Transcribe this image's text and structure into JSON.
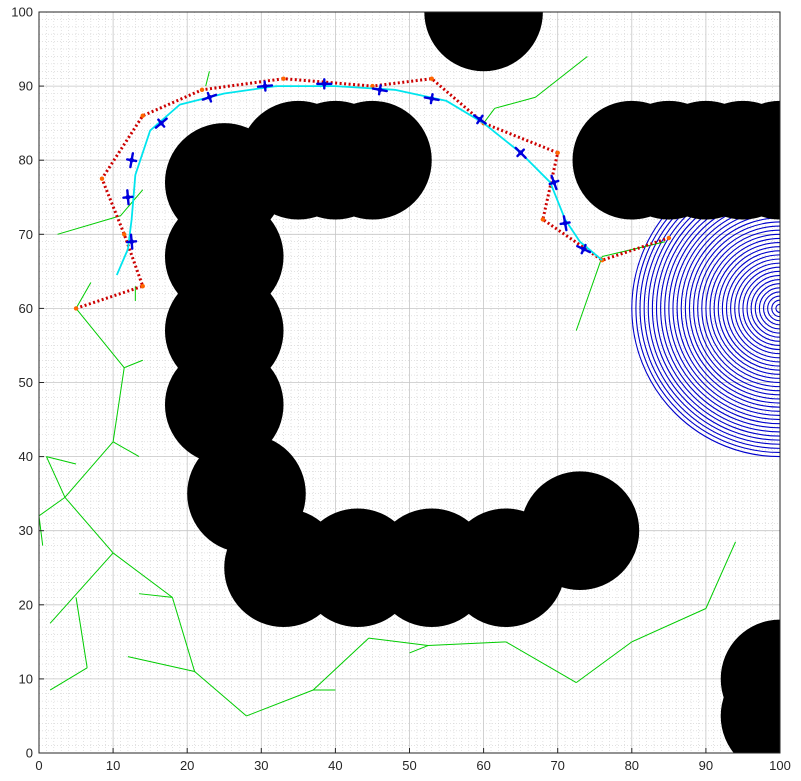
{
  "chart_data": {
    "type": "scatter",
    "title": "",
    "xlabel": "",
    "ylabel": "",
    "xlim": [
      0,
      100
    ],
    "ylim": [
      0,
      100
    ],
    "grid": true,
    "minor_grid": true,
    "x_ticks": [
      0,
      10,
      20,
      30,
      40,
      50,
      60,
      70,
      80,
      90,
      100
    ],
    "y_ticks": [
      0,
      10,
      20,
      30,
      40,
      50,
      60,
      70,
      80,
      90,
      100
    ],
    "x_tick_labels": [
      "0",
      "10",
      "20",
      "30",
      "40",
      "50",
      "60",
      "70",
      "80",
      "90",
      "100"
    ],
    "y_tick_labels": [
      "0",
      "10",
      "20",
      "30",
      "40",
      "50",
      "60",
      "70",
      "80",
      "90",
      "100"
    ],
    "colors": {
      "obstacle": "#000000",
      "tree": "#00cc00",
      "waypoint_path": "#cc0000",
      "waypoint_marker": "#ff6600",
      "smooth_path": "#00e5ee",
      "robot_pose": "#0000dd",
      "sensor_fan": "#0000cc",
      "grid": "#d0d0d0",
      "axis": "#262626"
    },
    "obstacles": [
      {
        "cx": 60,
        "cy": 100,
        "r": 8
      },
      {
        "cx": 25,
        "cy": 77,
        "r": 8
      },
      {
        "cx": 35,
        "cy": 80,
        "r": 8
      },
      {
        "cx": 40,
        "cy": 80,
        "r": 8
      },
      {
        "cx": 45,
        "cy": 80,
        "r": 8
      },
      {
        "cx": 25,
        "cy": 67,
        "r": 8
      },
      {
        "cx": 25,
        "cy": 57,
        "r": 8
      },
      {
        "cx": 25,
        "cy": 47,
        "r": 8
      },
      {
        "cx": 28,
        "cy": 35,
        "r": 8
      },
      {
        "cx": 33,
        "cy": 25,
        "r": 8
      },
      {
        "cx": 43,
        "cy": 25,
        "r": 8
      },
      {
        "cx": 53,
        "cy": 25,
        "r": 8
      },
      {
        "cx": 63,
        "cy": 25,
        "r": 8
      },
      {
        "cx": 73,
        "cy": 30,
        "r": 8
      },
      {
        "cx": 80,
        "cy": 80,
        "r": 8
      },
      {
        "cx": 85,
        "cy": 80,
        "r": 8
      },
      {
        "cx": 90,
        "cy": 80,
        "r": 8
      },
      {
        "cx": 95,
        "cy": 80,
        "r": 8
      },
      {
        "cx": 100,
        "cy": 80,
        "r": 8
      },
      {
        "cx": 100,
        "cy": 10,
        "r": 8
      },
      {
        "cx": 100,
        "cy": 5,
        "r": 8
      }
    ],
    "sensor_fan": {
      "cx": 100,
      "cy": 60,
      "r": 20,
      "rings": 36
    },
    "tree_edges": [
      [
        [
          5,
          60
        ],
        [
          7,
          63.5
        ]
      ],
      [
        [
          5,
          60
        ],
        [
          11.5,
          52
        ]
      ],
      [
        [
          11.5,
          52
        ],
        [
          14,
          53
        ]
      ],
      [
        [
          11.5,
          52
        ],
        [
          10,
          42
        ]
      ],
      [
        [
          10,
          42
        ],
        [
          13.5,
          40
        ]
      ],
      [
        [
          10,
          42
        ],
        [
          3.5,
          34.5
        ]
      ],
      [
        [
          3.5,
          34.5
        ],
        [
          1,
          40
        ]
      ],
      [
        [
          1,
          40
        ],
        [
          5,
          39
        ]
      ],
      [
        [
          3.5,
          34.5
        ],
        [
          0,
          32
        ]
      ],
      [
        [
          0,
          32
        ],
        [
          0.5,
          28
        ]
      ],
      [
        [
          3.5,
          34.5
        ],
        [
          10,
          27
        ]
      ],
      [
        [
          10,
          27
        ],
        [
          1.5,
          17.5
        ]
      ],
      [
        [
          10,
          27
        ],
        [
          18,
          21
        ]
      ],
      [
        [
          18,
          21
        ],
        [
          13.5,
          21.5
        ]
      ],
      [
        [
          18,
          21
        ],
        [
          21,
          11
        ]
      ],
      [
        [
          21,
          11
        ],
        [
          12,
          13
        ]
      ],
      [
        [
          21,
          11
        ],
        [
          28,
          5
        ]
      ],
      [
        [
          28,
          5
        ],
        [
          37,
          8.5
        ]
      ],
      [
        [
          37,
          8.5
        ],
        [
          40,
          8.5
        ]
      ],
      [
        [
          37,
          8.5
        ],
        [
          44.5,
          15.5
        ]
      ],
      [
        [
          44.5,
          15.5
        ],
        [
          52.5,
          14.5
        ]
      ],
      [
        [
          52.5,
          14.5
        ],
        [
          50,
          13.5
        ]
      ],
      [
        [
          52.5,
          14.5
        ],
        [
          63,
          15
        ]
      ],
      [
        [
          63,
          15
        ],
        [
          72.5,
          9.5
        ]
      ],
      [
        [
          72.5,
          9.5
        ],
        [
          80,
          15
        ]
      ],
      [
        [
          80,
          15
        ],
        [
          90,
          19.5
        ]
      ],
      [
        [
          90,
          19.5
        ],
        [
          94,
          28.5
        ]
      ],
      [
        [
          5,
          21
        ],
        [
          6.5,
          11.5
        ]
      ],
      [
        [
          6.5,
          11.5
        ],
        [
          1.5,
          8.5
        ]
      ],
      [
        [
          2.5,
          70
        ],
        [
          11,
          72.5
        ]
      ],
      [
        [
          11,
          72.5
        ],
        [
          14,
          76
        ]
      ],
      [
        [
          13,
          63
        ],
        [
          13,
          61
        ]
      ],
      [
        [
          22.5,
          90
        ],
        [
          23,
          92
        ]
      ],
      [
        [
          60,
          85
        ],
        [
          61.5,
          87
        ]
      ],
      [
        [
          61.5,
          87
        ],
        [
          67,
          88.5
        ]
      ],
      [
        [
          67,
          88.5
        ],
        [
          74,
          94
        ]
      ],
      [
        [
          76,
          67
        ],
        [
          72.5,
          57
        ]
      ],
      [
        [
          76,
          67
        ],
        [
          84.5,
          69
        ]
      ]
    ],
    "waypoints": {
      "x": [
        5,
        14,
        11.5,
        8.5,
        14,
        22,
        33,
        45,
        53,
        60,
        70,
        68,
        76,
        85
      ],
      "y": [
        60,
        63,
        70,
        77.5,
        86,
        89.5,
        91,
        90,
        91,
        85,
        81,
        72,
        66.5,
        69.5
      ]
    },
    "smooth_path": {
      "x": [
        10.5,
        12,
        12.5,
        13,
        15,
        19,
        25,
        32,
        40,
        48,
        55,
        60,
        65,
        69,
        71,
        73,
        76
      ],
      "y": [
        64.5,
        68,
        72,
        78,
        84,
        87.5,
        89,
        90,
        90,
        89.5,
        88,
        85,
        81,
        77,
        72,
        69,
        66.5
      ]
    },
    "robot_poses": {
      "x": [
        12.5,
        12,
        12.5,
        16.5,
        23,
        30.5,
        38.5,
        46,
        53,
        59.5,
        65,
        69.5,
        71,
        73.5
      ],
      "y": [
        69,
        75,
        80,
        85,
        88.5,
        90,
        90.3,
        89.5,
        88.3,
        85.5,
        81,
        77,
        71.5,
        68
      ],
      "heading_deg": [
        95,
        95,
        80,
        40,
        20,
        5,
        0,
        -10,
        -10,
        -35,
        -45,
        -70,
        -80,
        -25
      ]
    }
  }
}
